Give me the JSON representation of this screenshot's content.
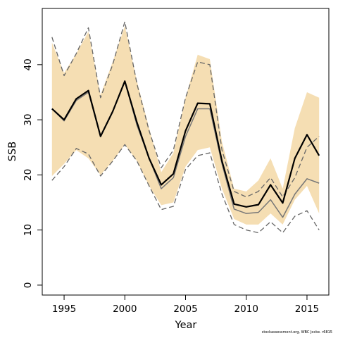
{
  "chart_data": {
    "type": "line",
    "title": "",
    "xlabel": "Year",
    "ylabel": "SSB",
    "xlim": [
      1993.2,
      2016.8
    ],
    "ylim": [
      -1.8,
      50.2
    ],
    "x_ticks": [
      1995,
      2000,
      2005,
      2010,
      2015
    ],
    "y_ticks": [
      0,
      10,
      20,
      30,
      40
    ],
    "grid": false,
    "legend": "none",
    "x": [
      1994,
      1995,
      1996,
      1997,
      1998,
      1999,
      2000,
      2001,
      2002,
      2003,
      2004,
      2005,
      2006,
      2007,
      2008,
      2009,
      2010,
      2011,
      2012,
      2013,
      2014,
      2015,
      2016
    ],
    "series": [
      {
        "role": "band-upper",
        "color": "#f5deb3",
        "values": [
          44.0,
          38.5,
          42.0,
          46.0,
          34.5,
          40.5,
          47.0,
          37.0,
          28.5,
          20.5,
          24.0,
          34.0,
          41.8,
          41.0,
          26.0,
          17.5,
          17.0,
          19.0,
          23.0,
          17.5,
          28.5,
          35.0,
          34.0
        ]
      },
      {
        "role": "band-lower",
        "color": "#f5deb3",
        "values": [
          19.8,
          22.0,
          24.5,
          23.0,
          20.0,
          22.5,
          25.5,
          22.5,
          18.0,
          14.5,
          15.0,
          21.5,
          24.5,
          25.0,
          17.5,
          12.0,
          11.0,
          11.0,
          13.0,
          11.0,
          15.5,
          18.0,
          13.0
        ]
      },
      {
        "role": "estimate",
        "color": "#000000",
        "values": [
          32.0,
          30.0,
          33.8,
          35.3,
          27.0,
          31.5,
          37.0,
          29.5,
          23.0,
          18.2,
          20.2,
          28.0,
          33.0,
          32.9,
          22.5,
          14.7,
          14.2,
          14.6,
          18.2,
          14.9,
          23.0,
          27.3,
          23.5
        ]
      },
      {
        "role": "median",
        "color": "#777777",
        "values": [
          32.0,
          29.8,
          33.5,
          35.0,
          27.0,
          31.5,
          37.0,
          29.0,
          23.0,
          17.5,
          19.5,
          27.0,
          32.0,
          32.0,
          22.0,
          13.8,
          13.0,
          13.2,
          15.5,
          12.3,
          16.5,
          19.3,
          18.5
        ]
      },
      {
        "role": "upper-ci",
        "color": "#666666",
        "values": [
          45.0,
          38.0,
          42.0,
          46.7,
          34.0,
          40.0,
          47.8,
          36.5,
          28.0,
          21.3,
          24.5,
          34.0,
          40.5,
          40.0,
          24.5,
          17.0,
          16.0,
          17.0,
          19.5,
          16.0,
          19.5,
          25.0,
          27.0
        ]
      },
      {
        "role": "lower-ci",
        "color": "#666666",
        "values": [
          19.0,
          21.5,
          24.8,
          23.8,
          19.8,
          22.5,
          25.5,
          22.5,
          18.0,
          13.7,
          14.3,
          21.0,
          23.5,
          24.0,
          16.5,
          11.0,
          10.0,
          9.5,
          11.5,
          9.5,
          12.5,
          13.5,
          10.0
        ]
      }
    ]
  },
  "credit_text": "stockassessment.org, WBC Jocke. r6815"
}
